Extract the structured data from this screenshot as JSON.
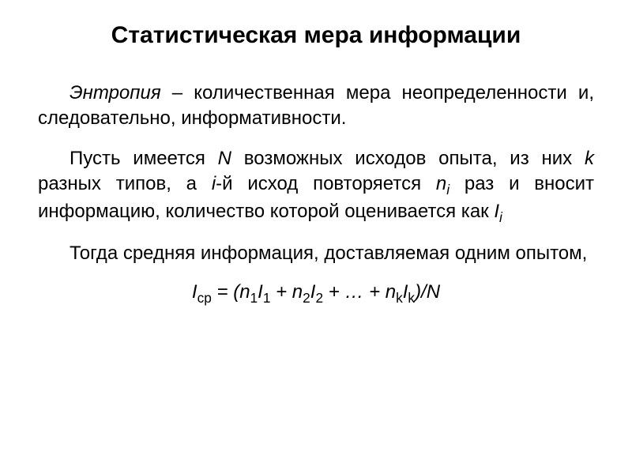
{
  "title": "Статистическая мера информации",
  "p1_entropy": "Энтропия",
  "p1_rest": " – количественная мера неопределенности и, следовательно, информативности.",
  "p2_a": "Пусть  имеется ",
  "p2_N": "N",
  "p2_b": " возможных исходов опыта, из них ",
  "p2_k": "k",
  "p2_c": " разных типов, а ",
  "p2_i": "i",
  "p2_d": "-й исход повторяется ",
  "p2_ni": "n",
  "p2_ni_sub": "i",
  "p2_e": " раз и вносит информацию, количество которой оценивается как ",
  "p2_Ii": "I",
  "p2_Ii_sub": "i",
  "p3_a": "Тогда средняя информация, доставляемая одним опытом,",
  "f_Icp": "I",
  "f_cp": "ср",
  "f_eq": " = (",
  "f_n1": "n",
  "f_1": "1",
  "f_I1": "I",
  "f_plus1": " + ",
  "f_n2": "n",
  "f_2": "2",
  "f_I2": "I",
  "f_plus2": " + … + ",
  "f_nk": "n",
  "f_k": "k",
  "f_Ik": "I",
  "f_close": ")/",
  "f_N": "N",
  "colors": {
    "text": "#000000",
    "background": "#ffffff"
  },
  "fontsizes": {
    "title": 30,
    "body": 24
  }
}
